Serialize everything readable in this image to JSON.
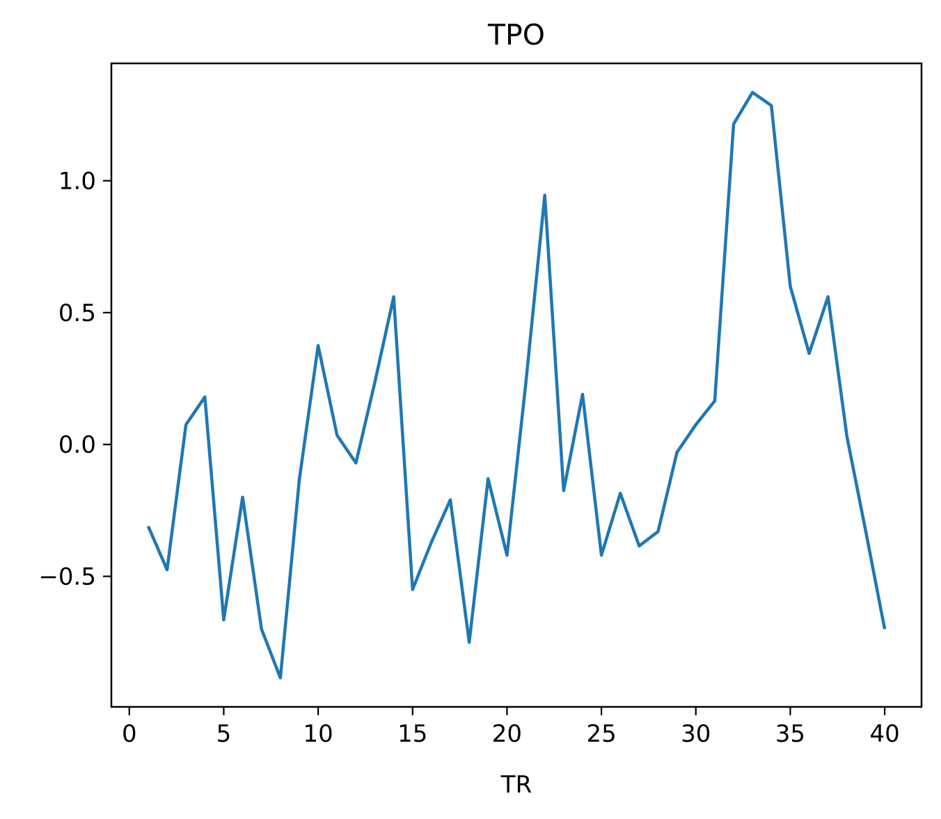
{
  "chart_data": {
    "type": "line",
    "title": "TPO",
    "xlabel": "TR",
    "ylabel": "",
    "xlim": [
      -0.95,
      41.95
    ],
    "ylim": [
      -0.995,
      1.445
    ],
    "x_ticks": [
      0,
      5,
      10,
      15,
      20,
      25,
      30,
      35,
      40
    ],
    "x_tick_labels": [
      "0",
      "5",
      "10",
      "15",
      "20",
      "25",
      "30",
      "35",
      "40"
    ],
    "y_ticks": [
      -0.5,
      0.0,
      0.5,
      1.0
    ],
    "y_tick_labels": [
      "−0.5",
      "0.0",
      "0.5",
      "1.0"
    ],
    "grid": false,
    "series": [
      {
        "color": "#1f77b4",
        "x": [
          1,
          2,
          3,
          4,
          5,
          6,
          7,
          8,
          9,
          10,
          11,
          12,
          13,
          14,
          15,
          16,
          17,
          18,
          19,
          20,
          21,
          22,
          23,
          24,
          25,
          26,
          27,
          28,
          29,
          30,
          31,
          32,
          33,
          34,
          35,
          36,
          37,
          38,
          39,
          40
        ],
        "values": [
          -0.31,
          -0.475,
          0.075,
          0.18,
          -0.665,
          -0.2,
          -0.7,
          -0.885,
          -0.135,
          0.375,
          0.035,
          -0.07,
          0.235,
          0.56,
          -0.55,
          -0.37,
          -0.21,
          -0.75,
          -0.13,
          -0.42,
          0.235,
          0.945,
          -0.175,
          0.19,
          -0.42,
          -0.185,
          -0.385,
          -0.33,
          -0.03,
          0.075,
          0.165,
          1.215,
          1.335,
          1.285,
          0.6,
          0.345,
          0.56,
          0.03,
          -0.33,
          -0.7
        ]
      }
    ]
  }
}
